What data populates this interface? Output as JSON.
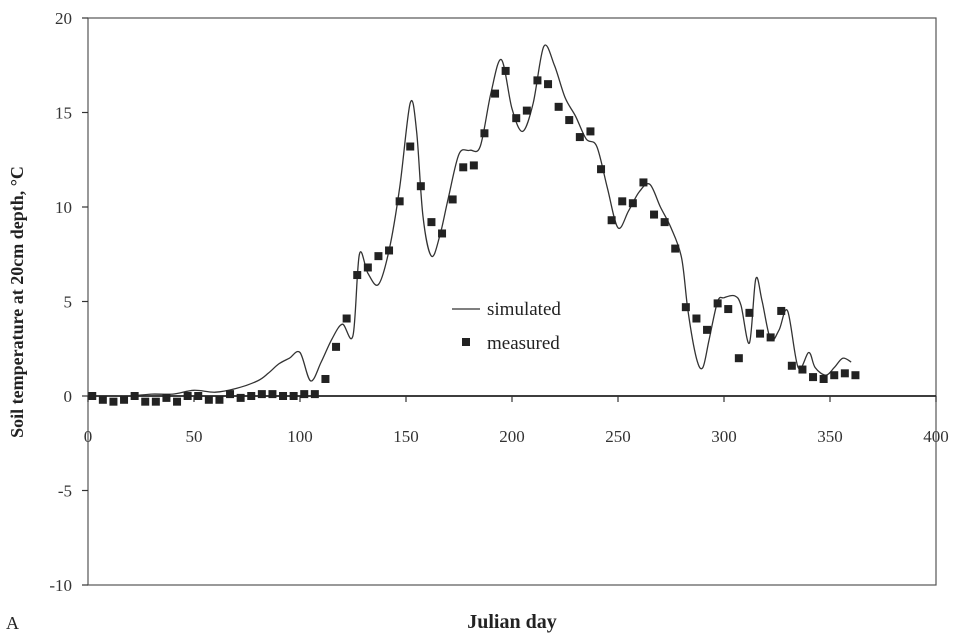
{
  "chart_data": {
    "type": "line",
    "panel_label": "A",
    "xlabel": "Julian day",
    "ylabel": "Soil temperature at 20cm depth, °C",
    "xlim": [
      0,
      400
    ],
    "ylim": [
      -10,
      20
    ],
    "x_ticks": [
      0,
      50,
      100,
      150,
      200,
      250,
      300,
      350,
      400
    ],
    "y_ticks": [
      -10,
      -5,
      0,
      5,
      10,
      15,
      20
    ],
    "grid": false,
    "legend_position": "center",
    "series": [
      {
        "name": "simulated",
        "style": "line",
        "x": [
          0,
          10,
          20,
          30,
          40,
          50,
          60,
          70,
          80,
          85,
          90,
          95,
          100,
          105,
          110,
          115,
          120,
          125,
          128,
          132,
          137,
          142,
          147,
          152,
          155,
          158,
          162,
          166,
          170,
          175,
          180,
          185,
          190,
          195,
          200,
          205,
          210,
          215,
          220,
          225,
          230,
          235,
          240,
          245,
          250,
          255,
          260,
          265,
          270,
          275,
          280,
          283,
          287,
          290,
          293,
          297,
          300,
          305,
          308,
          312,
          315,
          318,
          322,
          326,
          330,
          335,
          340,
          343,
          348,
          352,
          356,
          360
        ],
        "y": [
          0,
          0,
          0,
          0.1,
          0.1,
          0.3,
          0.2,
          0.4,
          0.8,
          1.2,
          1.7,
          2.0,
          2.3,
          0.8,
          1.8,
          3.0,
          3.8,
          3.2,
          7.5,
          6.5,
          5.9,
          7.7,
          11.0,
          15.5,
          14.0,
          9.5,
          7.4,
          8.5,
          10.5,
          12.8,
          13.0,
          13.2,
          16.0,
          17.8,
          15.2,
          14.0,
          15.5,
          18.5,
          17.5,
          15.8,
          14.8,
          13.6,
          13.2,
          11.0,
          8.9,
          9.8,
          10.8,
          11.2,
          10.0,
          8.9,
          7.3,
          4.5,
          2.0,
          1.5,
          3.0,
          5.0,
          5.2,
          5.3,
          4.8,
          2.8,
          6.2,
          5.0,
          3.0,
          3.5,
          4.5,
          1.5,
          2.3,
          1.5,
          1.1,
          1.5,
          2.0,
          1.8
        ]
      },
      {
        "name": "measured",
        "style": "marker",
        "x": [
          2,
          7,
          12,
          17,
          22,
          27,
          32,
          37,
          42,
          47,
          52,
          57,
          62,
          67,
          72,
          77,
          82,
          87,
          92,
          97,
          102,
          107,
          112,
          117,
          122,
          127,
          132,
          137,
          142,
          147,
          152,
          157,
          162,
          167,
          172,
          177,
          182,
          187,
          192,
          197,
          202,
          207,
          212,
          217,
          222,
          227,
          232,
          237,
          242,
          247,
          252,
          257,
          262,
          267,
          272,
          277,
          282,
          287,
          292,
          297,
          302,
          307,
          312,
          317,
          322,
          327,
          332,
          337,
          342,
          347,
          352,
          357,
          362
        ],
        "y": [
          0.0,
          -0.2,
          -0.3,
          -0.2,
          0.0,
          -0.3,
          -0.3,
          -0.1,
          -0.3,
          0.0,
          0.0,
          -0.2,
          -0.2,
          0.1,
          -0.1,
          0.0,
          0.1,
          0.1,
          0.0,
          0.0,
          0.1,
          0.1,
          0.9,
          2.6,
          4.1,
          6.4,
          6.8,
          7.4,
          7.7,
          10.3,
          13.2,
          11.1,
          9.2,
          8.6,
          10.4,
          12.1,
          12.2,
          13.9,
          16.0,
          17.2,
          14.7,
          15.1,
          16.7,
          16.5,
          15.3,
          14.6,
          13.7,
          14.0,
          12.0,
          9.3,
          10.3,
          10.2,
          11.3,
          9.6,
          9.2,
          7.8,
          4.7,
          4.1,
          3.5,
          4.9,
          4.6,
          2.0,
          4.4,
          3.3,
          3.1,
          4.5,
          1.6,
          1.4,
          1.0,
          0.9,
          1.1,
          1.2,
          1.1
        ]
      }
    ]
  }
}
